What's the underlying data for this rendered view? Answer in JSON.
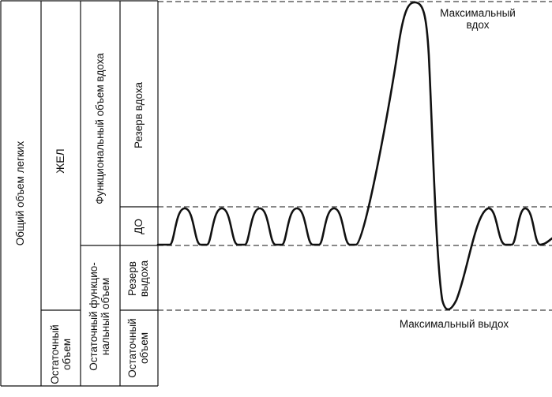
{
  "diagram": {
    "columns": {
      "total": "Общий объем легких",
      "vital": "ЖЕЛ",
      "residual_a": [
        "Остаточный",
        "объем"
      ],
      "functional_inspiratory": "Функциональный объем вдоха",
      "functional_residual": [
        "Остаточный функцио-",
        "нальный объем"
      ],
      "inspiratory_reserve": "Резерв вдоха",
      "tidal": "ДО",
      "expiratory_reserve": [
        "Резерв",
        "выдоха"
      ],
      "residual_b": [
        "Остаточный",
        "объем"
      ]
    },
    "annotations": {
      "max_inhale": [
        "Максимальный",
        "вдох"
      ],
      "max_exhale": "Максимальный выдох"
    },
    "colors": {
      "line": "#111111",
      "background": "#ffffff"
    }
  }
}
